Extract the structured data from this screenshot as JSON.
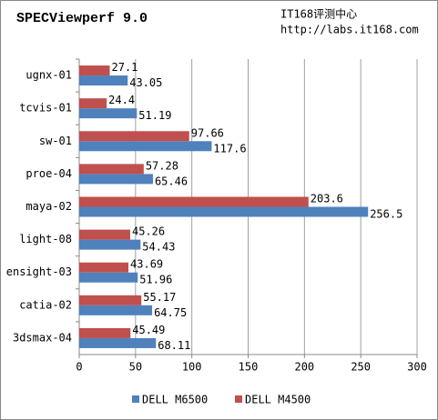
{
  "chart_data": {
    "type": "bar",
    "orientation": "horizontal",
    "title": "SPECViewperf 9.0",
    "annotations": [
      "IT168评测中心",
      "http://labs.it168.com"
    ],
    "categories": [
      "ugnx-01",
      "tcvis-01",
      "sw-01",
      "proe-04",
      "maya-02",
      "light-08",
      "ensight-03",
      "catia-02",
      "3dsmax-04"
    ],
    "series": [
      {
        "name": "DELL M6500",
        "color": "#4f81bd",
        "values": [
          43.05,
          51.19,
          117.6,
          65.46,
          256.5,
          54.43,
          51.96,
          64.75,
          68.11
        ]
      },
      {
        "name": "DELL M4500",
        "color": "#c0504d",
        "values": [
          27.1,
          24.4,
          97.66,
          57.28,
          203.6,
          45.26,
          43.69,
          55.17,
          45.49
        ]
      }
    ],
    "xlim": [
      0,
      300
    ],
    "xticks": [
      0,
      50,
      100,
      150,
      200,
      250,
      300
    ],
    "grid": true,
    "legend": "bottom"
  }
}
